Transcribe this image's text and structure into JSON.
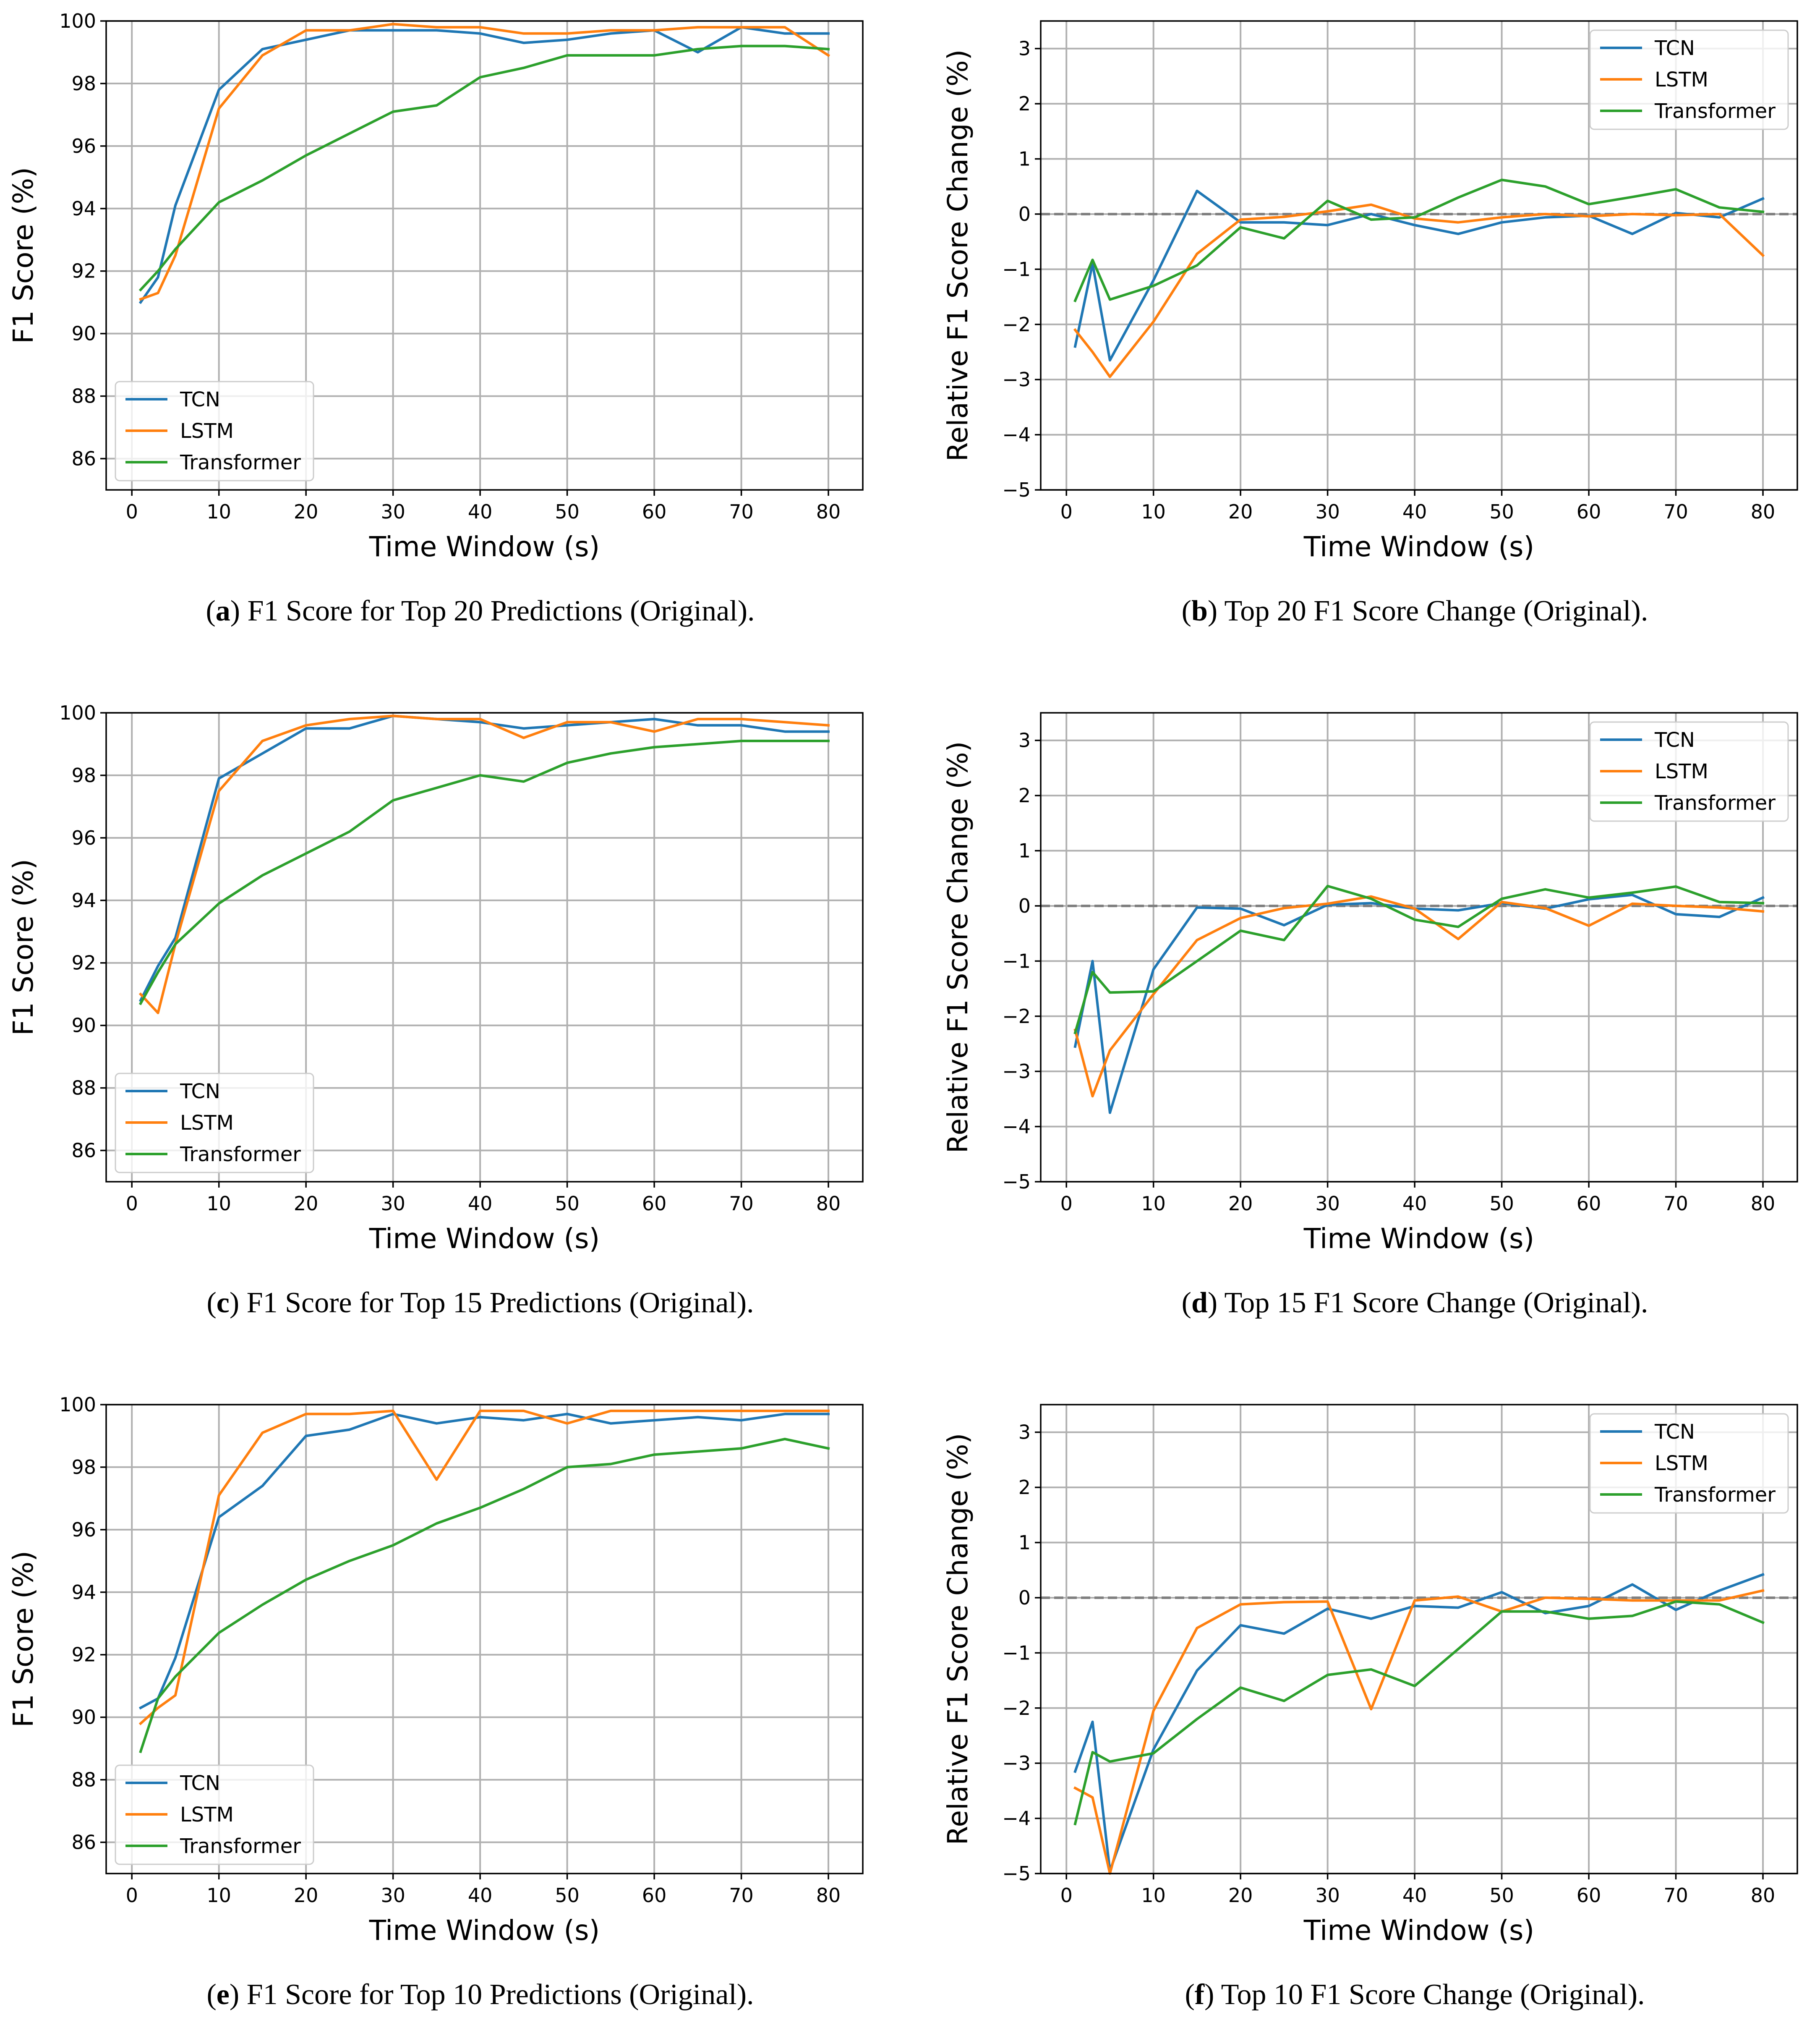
{
  "chart_data": [
    {
      "panel": "a",
      "type": "line",
      "caption_letter": "a",
      "caption": "F1 Score for Top 20 Predictions (Original).",
      "xlabel": "Time Window (s)",
      "ylabel": "F1 Score (%)",
      "xlim": [
        -2.95,
        83.95
      ],
      "ylim": [
        85,
        100
      ],
      "xticks": [
        0,
        10,
        20,
        30,
        40,
        50,
        60,
        70,
        80
      ],
      "xtick_labels": [
        "0",
        "10",
        "20",
        "30",
        "40",
        "50",
        "60",
        "70",
        "80"
      ],
      "yticks": [
        86,
        88,
        90,
        92,
        94,
        96,
        98,
        100
      ],
      "ytick_labels": [
        "86",
        "88",
        "90",
        "92",
        "94",
        "96",
        "98",
        "100"
      ],
      "zero_line": false,
      "grid": true,
      "legend_position": "lower-left",
      "x": [
        1,
        3,
        5,
        10,
        15,
        20,
        25,
        30,
        35,
        40,
        45,
        50,
        55,
        60,
        65,
        70,
        75,
        80
      ],
      "series": [
        {
          "name": "TCN",
          "color": "#1f77b4",
          "values": [
            91.0,
            91.8,
            94.1,
            97.8,
            99.1,
            99.4,
            99.7,
            99.7,
            99.7,
            99.6,
            99.3,
            99.4,
            99.6,
            99.7,
            99.0,
            99.8,
            99.6,
            99.6
          ]
        },
        {
          "name": "LSTM",
          "color": "#ff7f0e",
          "values": [
            91.1,
            91.3,
            92.5,
            97.2,
            98.9,
            99.7,
            99.7,
            99.9,
            99.8,
            99.8,
            99.6,
            99.6,
            99.7,
            99.7,
            99.8,
            99.8,
            99.8,
            98.9
          ]
        },
        {
          "name": "Transformer",
          "color": "#2ca02c",
          "values": [
            91.4,
            92.0,
            92.7,
            94.2,
            94.9,
            95.7,
            96.4,
            97.1,
            97.3,
            98.2,
            98.5,
            98.9,
            98.9,
            98.9,
            99.1,
            99.2,
            99.2,
            99.1
          ]
        }
      ]
    },
    {
      "panel": "b",
      "type": "line",
      "caption_letter": "b",
      "caption": "Top 20 F1 Score Change (Original).",
      "xlabel": "Time Window (s)",
      "ylabel": "Relative F1 Score Change (%)",
      "xlim": [
        -2.95,
        83.95
      ],
      "ylim": [
        -5,
        3.5
      ],
      "xticks": [
        0,
        10,
        20,
        30,
        40,
        50,
        60,
        70,
        80
      ],
      "xtick_labels": [
        "0",
        "10",
        "20",
        "30",
        "40",
        "50",
        "60",
        "70",
        "80"
      ],
      "yticks": [
        -5,
        -4,
        -3,
        -2,
        -1,
        0,
        1,
        2,
        3
      ],
      "ytick_labels": [
        "−5",
        "−4",
        "−3",
        "−2",
        "−1",
        "0",
        "1",
        "2",
        "3"
      ],
      "zero_line": true,
      "grid": true,
      "legend_position": "upper-right",
      "x": [
        1,
        3,
        5,
        10,
        15,
        20,
        25,
        30,
        35,
        40,
        45,
        50,
        55,
        60,
        65,
        70,
        75,
        80
      ],
      "series": [
        {
          "name": "TCN",
          "color": "#1f77b4",
          "values": [
            -2.4,
            -0.9,
            -2.65,
            -1.2,
            0.42,
            -0.15,
            -0.15,
            -0.2,
            0.0,
            -0.2,
            -0.36,
            -0.15,
            -0.06,
            -0.03,
            -0.36,
            0.02,
            -0.06,
            0.28
          ]
        },
        {
          "name": "LSTM",
          "color": "#ff7f0e",
          "values": [
            -2.1,
            -2.5,
            -2.95,
            -1.95,
            -0.72,
            -0.1,
            -0.05,
            0.05,
            0.17,
            -0.08,
            -0.15,
            -0.06,
            0.0,
            -0.04,
            0.0,
            -0.02,
            0.0,
            -0.75
          ]
        },
        {
          "name": "Transformer",
          "color": "#2ca02c",
          "values": [
            -1.57,
            -0.83,
            -1.55,
            -1.3,
            -0.93,
            -0.24,
            -0.44,
            0.24,
            -0.1,
            -0.06,
            0.3,
            0.62,
            0.5,
            0.18,
            0.31,
            0.45,
            0.12,
            0.04
          ]
        }
      ]
    },
    {
      "panel": "c",
      "type": "line",
      "caption_letter": "c",
      "caption": "F1 Score for Top 15 Predictions (Original).",
      "xlabel": "Time Window (s)",
      "ylabel": "F1 Score (%)",
      "xlim": [
        -2.95,
        83.95
      ],
      "ylim": [
        85,
        100
      ],
      "xticks": [
        0,
        10,
        20,
        30,
        40,
        50,
        60,
        70,
        80
      ],
      "xtick_labels": [
        "0",
        "10",
        "20",
        "30",
        "40",
        "50",
        "60",
        "70",
        "80"
      ],
      "yticks": [
        86,
        88,
        90,
        92,
        94,
        96,
        98,
        100
      ],
      "ytick_labels": [
        "86",
        "88",
        "90",
        "92",
        "94",
        "96",
        "98",
        "100"
      ],
      "zero_line": false,
      "grid": true,
      "legend_position": "lower-left",
      "x": [
        1,
        3,
        5,
        10,
        15,
        20,
        25,
        30,
        35,
        40,
        45,
        50,
        55,
        60,
        65,
        70,
        75,
        80
      ],
      "series": [
        {
          "name": "TCN",
          "color": "#1f77b4",
          "values": [
            90.8,
            91.9,
            92.8,
            97.9,
            98.7,
            99.5,
            99.5,
            99.9,
            99.8,
            99.7,
            99.5,
            99.6,
            99.7,
            99.8,
            99.6,
            99.6,
            99.4,
            99.4
          ]
        },
        {
          "name": "LSTM",
          "color": "#ff7f0e",
          "values": [
            91.0,
            90.4,
            92.6,
            97.5,
            99.1,
            99.6,
            99.8,
            99.9,
            99.8,
            99.8,
            99.2,
            99.7,
            99.7,
            99.4,
            99.8,
            99.8,
            99.7,
            99.6
          ]
        },
        {
          "name": "Transformer",
          "color": "#2ca02c",
          "values": [
            90.7,
            91.7,
            92.6,
            93.9,
            94.8,
            95.5,
            96.2,
            97.2,
            97.6,
            98.0,
            97.8,
            98.4,
            98.7,
            98.9,
            99.0,
            99.1,
            99.1,
            99.1
          ]
        }
      ]
    },
    {
      "panel": "d",
      "type": "line",
      "caption_letter": "d",
      "caption": "Top 15 F1 Score Change (Original).",
      "xlabel": "Time Window (s)",
      "ylabel": "Relative F1 Score Change (%)",
      "xlim": [
        -2.95,
        83.95
      ],
      "ylim": [
        -5,
        3.5
      ],
      "xticks": [
        0,
        10,
        20,
        30,
        40,
        50,
        60,
        70,
        80
      ],
      "xtick_labels": [
        "0",
        "10",
        "20",
        "30",
        "40",
        "50",
        "60",
        "70",
        "80"
      ],
      "yticks": [
        -5,
        -4,
        -3,
        -2,
        -1,
        0,
        1,
        2,
        3
      ],
      "ytick_labels": [
        "−5",
        "−4",
        "−3",
        "−2",
        "−1",
        "0",
        "1",
        "2",
        "3"
      ],
      "zero_line": true,
      "grid": true,
      "legend_position": "upper-right",
      "x": [
        1,
        3,
        5,
        10,
        15,
        20,
        25,
        30,
        35,
        40,
        45,
        50,
        55,
        60,
        65,
        70,
        75,
        80
      ],
      "series": [
        {
          "name": "TCN",
          "color": "#1f77b4",
          "values": [
            -2.55,
            -1.0,
            -3.75,
            -1.15,
            -0.03,
            -0.05,
            -0.35,
            0.02,
            0.05,
            -0.05,
            -0.08,
            0.05,
            -0.05,
            0.12,
            0.2,
            -0.15,
            -0.2,
            0.15
          ]
        },
        {
          "name": "LSTM",
          "color": "#ff7f0e",
          "values": [
            -2.25,
            -3.45,
            -2.62,
            -1.6,
            -0.62,
            -0.22,
            -0.04,
            0.04,
            0.17,
            -0.05,
            -0.6,
            0.07,
            -0.04,
            -0.36,
            0.04,
            0.0,
            -0.03,
            -0.1
          ]
        },
        {
          "name": "Transformer",
          "color": "#2ca02c",
          "values": [
            -2.3,
            -1.2,
            -1.57,
            -1.55,
            -1.0,
            -0.45,
            -0.62,
            0.36,
            0.13,
            -0.25,
            -0.38,
            0.13,
            0.3,
            0.15,
            0.24,
            0.35,
            0.07,
            0.05
          ]
        }
      ]
    },
    {
      "panel": "e",
      "type": "line",
      "caption_letter": "e",
      "caption": "F1 Score for Top 10 Predictions (Original).",
      "xlabel": "Time Window (s)",
      "ylabel": "F1 Score (%)",
      "xlim": [
        -2.95,
        83.95
      ],
      "ylim": [
        85,
        100
      ],
      "xticks": [
        0,
        10,
        20,
        30,
        40,
        50,
        60,
        70,
        80
      ],
      "xtick_labels": [
        "0",
        "10",
        "20",
        "30",
        "40",
        "50",
        "60",
        "70",
        "80"
      ],
      "yticks": [
        86,
        88,
        90,
        92,
        94,
        96,
        98,
        100
      ],
      "ytick_labels": [
        "86",
        "88",
        "90",
        "92",
        "94",
        "96",
        "98",
        "100"
      ],
      "zero_line": false,
      "grid": true,
      "legend_position": "lower-left",
      "x": [
        1,
        3,
        5,
        10,
        15,
        20,
        25,
        30,
        35,
        40,
        45,
        50,
        55,
        60,
        65,
        70,
        75,
        80
      ],
      "series": [
        {
          "name": "TCN",
          "color": "#1f77b4",
          "values": [
            90.3,
            90.6,
            91.9,
            96.4,
            97.4,
            99.0,
            99.2,
            99.7,
            99.4,
            99.6,
            99.5,
            99.7,
            99.4,
            99.5,
            99.6,
            99.5,
            99.7,
            99.7
          ]
        },
        {
          "name": "LSTM",
          "color": "#ff7f0e",
          "values": [
            89.8,
            90.3,
            90.7,
            97.1,
            99.1,
            99.7,
            99.7,
            99.8,
            97.6,
            99.8,
            99.8,
            99.4,
            99.8,
            99.8,
            99.8,
            99.8,
            99.8,
            99.8
          ]
        },
        {
          "name": "Transformer",
          "color": "#2ca02c",
          "values": [
            88.9,
            90.6,
            91.3,
            92.7,
            93.6,
            94.4,
            95.0,
            95.5,
            96.2,
            96.7,
            97.3,
            98.0,
            98.1,
            98.4,
            98.5,
            98.6,
            98.9,
            98.6
          ]
        }
      ]
    },
    {
      "panel": "f",
      "type": "line",
      "caption_letter": "f",
      "caption": "Top 10 F1 Score Change (Original).",
      "xlabel": "Time Window (s)",
      "ylabel": "Relative F1 Score Change (%)",
      "xlim": [
        -2.95,
        83.95
      ],
      "ylim": [
        -5,
        3.5
      ],
      "xticks": [
        0,
        10,
        20,
        30,
        40,
        50,
        60,
        70,
        80
      ],
      "xtick_labels": [
        "0",
        "10",
        "20",
        "30",
        "40",
        "50",
        "60",
        "70",
        "80"
      ],
      "yticks": [
        -5,
        -4,
        -3,
        -2,
        -1,
        0,
        1,
        2,
        3
      ],
      "ytick_labels": [
        "−5",
        "−4",
        "−3",
        "−2",
        "−1",
        "0",
        "1",
        "2",
        "3"
      ],
      "zero_line": true,
      "grid": true,
      "legend_position": "upper-right",
      "x": [
        1,
        3,
        5,
        10,
        15,
        20,
        25,
        30,
        35,
        40,
        45,
        50,
        55,
        60,
        65,
        70,
        75,
        80
      ],
      "series": [
        {
          "name": "TCN",
          "color": "#1f77b4",
          "values": [
            -3.15,
            -2.25,
            -4.95,
            -2.75,
            -1.32,
            -0.5,
            -0.65,
            -0.2,
            -0.38,
            -0.15,
            -0.18,
            0.1,
            -0.28,
            -0.15,
            0.24,
            -0.22,
            0.13,
            0.42
          ]
        },
        {
          "name": "LSTM",
          "color": "#ff7f0e",
          "values": [
            -3.45,
            -3.62,
            -5.0,
            -2.05,
            -0.55,
            -0.12,
            -0.08,
            -0.07,
            -2.02,
            -0.05,
            0.02,
            -0.25,
            0.0,
            -0.02,
            -0.05,
            -0.05,
            -0.05,
            0.13
          ]
        },
        {
          "name": "Transformer",
          "color": "#2ca02c",
          "values": [
            -4.1,
            -2.8,
            -2.97,
            -2.82,
            -2.2,
            -1.63,
            -1.87,
            -1.4,
            -1.3,
            -1.6,
            -0.93,
            -0.25,
            -0.25,
            -0.38,
            -0.33,
            -0.07,
            -0.12,
            -0.45
          ]
        }
      ]
    }
  ]
}
